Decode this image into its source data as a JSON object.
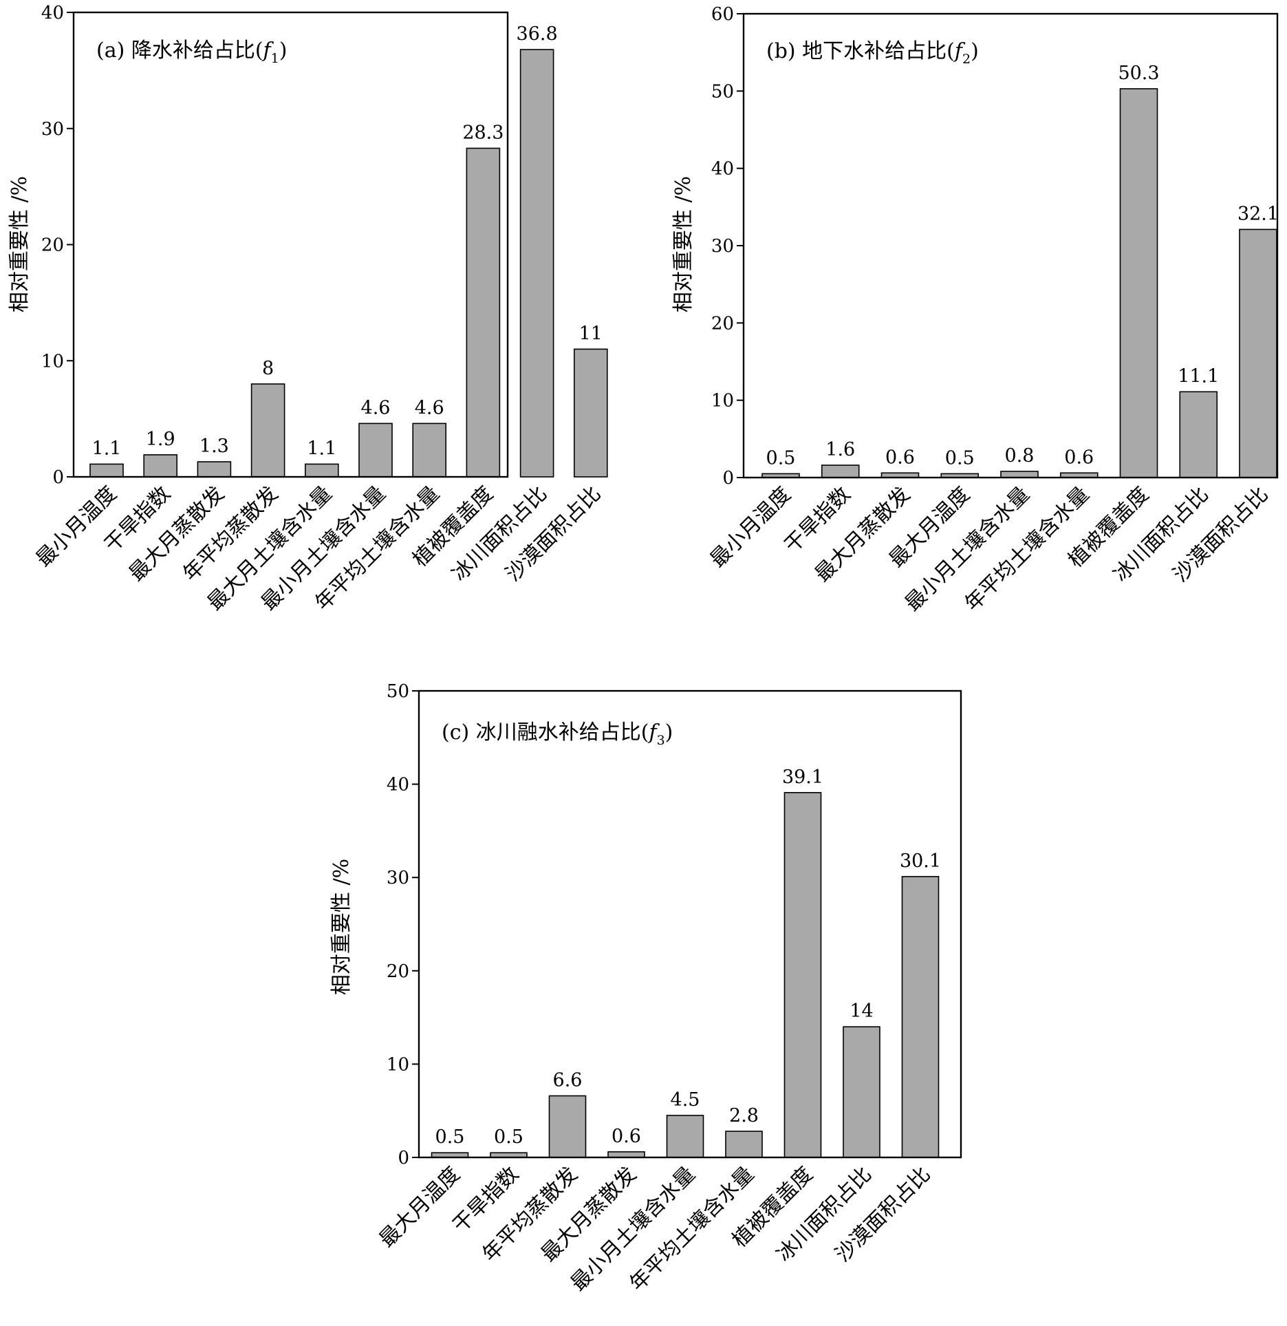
{
  "chart_data": [
    {
      "type": "bar",
      "title": "(a) 降水补给占比(f1)",
      "title_parts": {
        "prefix": "(a) 降水补给占比(",
        "var": "f",
        "sub": "1",
        "suffix": ")"
      },
      "xlabel": "",
      "ylabel": "相对重要性 /%",
      "ylim": [
        0,
        40
      ],
      "yticks": [
        0,
        10,
        20,
        30,
        40
      ],
      "categories": [
        "最小月温度",
        "干旱指数",
        "最大月蒸散发",
        "年平均蒸散发",
        "最大月土壤含水量",
        "最小月土壤含水量",
        "年平均土壤含水量",
        "植被覆盖度",
        "冰川面积占比",
        "沙漠面积占比"
      ],
      "values": [
        1.1,
        1.9,
        1.3,
        8,
        1.1,
        4.6,
        4.6,
        28.3,
        36.8,
        11
      ],
      "value_labels": [
        "1.1",
        "1.9",
        "1.3",
        "8",
        "1.1",
        "4.6",
        "4.6",
        "28.3",
        "36.8",
        "11"
      ],
      "bar_color": "#a9a9a9",
      "grid": false
    },
    {
      "type": "bar",
      "title": "(b) 地下水补给占比(f2)",
      "title_parts": {
        "prefix": "(b) 地下水补给占比(",
        "var": "f",
        "sub": "2",
        "suffix": ")"
      },
      "xlabel": "",
      "ylabel": "相对重要性 /%",
      "ylim": [
        0,
        60
      ],
      "yticks": [
        0,
        10,
        20,
        30,
        40,
        50,
        60
      ],
      "categories": [
        "最小月温度",
        "干旱指数",
        "最大月蒸散发",
        "最大月温度",
        "最小月土壤含水量",
        "年平均土壤含水量",
        "植被覆盖度",
        "冰川面积占比",
        "沙漠面积占比"
      ],
      "values": [
        0.5,
        1.6,
        0.6,
        0.5,
        0.8,
        0.6,
        50.3,
        11.1,
        32.1
      ],
      "value_labels": [
        "0.5",
        "1.6",
        "0.6",
        "0.5",
        "0.8",
        "0.6",
        "50.3",
        "11.1",
        "32.1"
      ],
      "bar_color": "#a9a9a9",
      "grid": false
    },
    {
      "type": "bar",
      "title": "(c) 冰川融水补给占比(f3)",
      "title_parts": {
        "prefix": "(c) 冰川融水补给占比(",
        "var": "f",
        "sub": "3",
        "suffix": ")"
      },
      "xlabel": "",
      "ylabel": "相对重要性 /%",
      "ylim": [
        0,
        50
      ],
      "yticks": [
        0,
        10,
        20,
        30,
        40,
        50
      ],
      "categories": [
        "最大月温度",
        "干旱指数",
        "年平均蒸散发",
        "最大月蒸散发",
        "最小月土壤含水量",
        "年平均土壤含水量",
        "植被覆盖度",
        "冰川面积占比",
        "沙漠面积占比"
      ],
      "values": [
        0.5,
        0.5,
        6.6,
        0.6,
        4.5,
        2.8,
        39.1,
        14,
        30.1
      ],
      "value_labels": [
        "0.5",
        "0.5",
        "6.6",
        "0.6",
        "4.5",
        "2.8",
        "39.1",
        "14",
        "30.1"
      ],
      "bar_color": "#a9a9a9",
      "grid": false
    }
  ]
}
